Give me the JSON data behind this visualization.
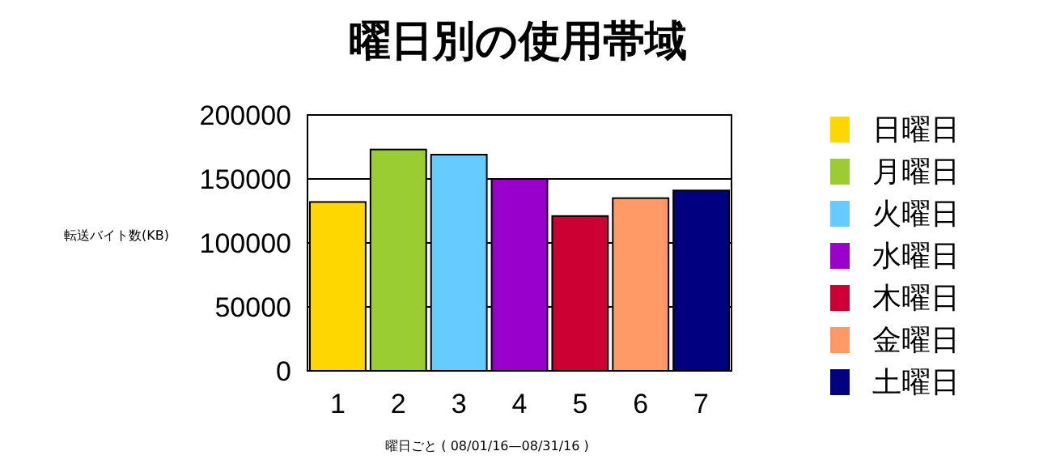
{
  "chart_data": {
    "type": "bar",
    "title": "曜日別の使用帯域",
    "xlabel": "曜日ごと ( 08/01/16—08/31/16 )",
    "ylabel": "転送バイト数(KB)",
    "categories": [
      "1",
      "2",
      "3",
      "4",
      "5",
      "6",
      "7"
    ],
    "stacked": true,
    "ylim": [
      0,
      200000
    ],
    "yticks": [
      0,
      50000,
      100000,
      150000,
      200000
    ],
    "grid": "y",
    "legend": "right",
    "series": [
      {
        "name": "日曜日",
        "color": "#ffd700",
        "values": [
          132000,
          null,
          null,
          null,
          null,
          null,
          null
        ]
      },
      {
        "name": "月曜日",
        "color": "#9acd32",
        "values": [
          null,
          173000,
          null,
          null,
          null,
          null,
          null
        ]
      },
      {
        "name": "火曜日",
        "color": "#66ccff",
        "values": [
          null,
          null,
          169000,
          null,
          null,
          null,
          null
        ]
      },
      {
        "name": "水曜日",
        "color": "#9900cc",
        "values": [
          null,
          null,
          null,
          150000,
          null,
          null,
          null
        ]
      },
      {
        "name": "木曜日",
        "color": "#cc0033",
        "values": [
          null,
          null,
          null,
          null,
          121000,
          null,
          null
        ]
      },
      {
        "name": "金曜日",
        "color": "#ff9966",
        "values": [
          null,
          null,
          null,
          null,
          null,
          135000,
          null
        ]
      },
      {
        "name": "土曜日",
        "color": "#000080",
        "values": [
          null,
          null,
          null,
          null,
          null,
          null,
          141000
        ]
      }
    ]
  }
}
